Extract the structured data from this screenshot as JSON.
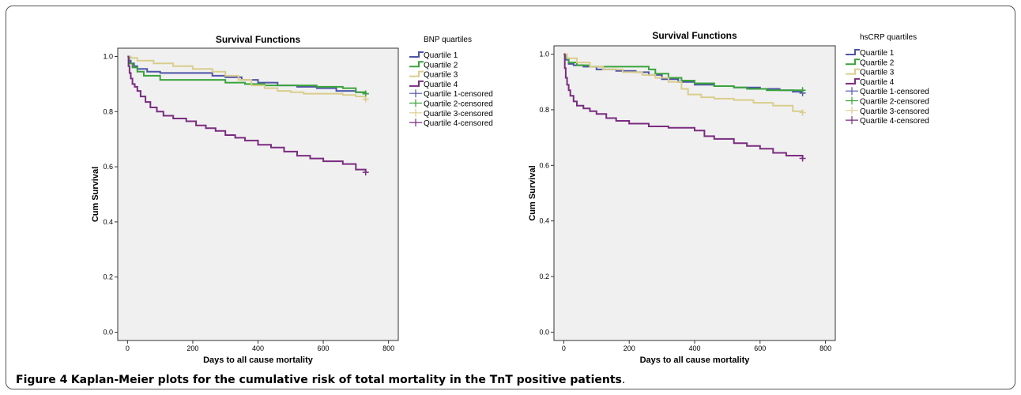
{
  "caption": {
    "label": "Figure 4",
    "text": "Kaplan-Meier plots for the cumulative risk of total mortality in the TnT positive patients",
    "end": "."
  },
  "chart_data": [
    {
      "type": "line",
      "title": "Survival Functions",
      "xlabel": "Days to all cause mortality",
      "ylabel": "Cum Survival",
      "xlim": [
        -30,
        830
      ],
      "ylim": [
        -0.03,
        1.03
      ],
      "xticks": [
        0,
        200,
        400,
        600,
        800
      ],
      "yticks": [
        0.0,
        0.2,
        0.4,
        0.6,
        0.8,
        1.0
      ],
      "xtick_labels": [
        "0",
        "200",
        "400",
        "600",
        "800"
      ],
      "ytick_labels": [
        "0.0",
        "0.2",
        "0.4",
        "0.6",
        "0.8",
        "1.0"
      ],
      "grid": false,
      "legend_title": "BNP quartiles",
      "legend_position": "right",
      "legend_entries": [
        "Quartile 1",
        "Quartile 2",
        "Quartile 3",
        "Quartile 4",
        "Quartile 1-censored",
        "Quartile 2-censored",
        "Quartile 3-censored",
        "Quartile 4-censored"
      ],
      "series": [
        {
          "name": "Quartile 1",
          "color": "#4e55a6",
          "censor_x": 730,
          "x": [
            0,
            4,
            10,
            20,
            30,
            60,
            100,
            160,
            260,
            300,
            350,
            400,
            460,
            520,
            580,
            640,
            700,
            730
          ],
          "y": [
            1.0,
            0.985,
            0.975,
            0.965,
            0.955,
            0.945,
            0.94,
            0.94,
            0.93,
            0.925,
            0.915,
            0.905,
            0.895,
            0.89,
            0.885,
            0.875,
            0.87,
            0.865
          ]
        },
        {
          "name": "Quartile 2",
          "color": "#3aa43a",
          "censor_x": 730,
          "x": [
            0,
            5,
            15,
            30,
            50,
            100,
            150,
            240,
            300,
            360,
            420,
            500,
            580,
            660,
            700,
            730
          ],
          "y": [
            1.0,
            0.975,
            0.96,
            0.945,
            0.93,
            0.915,
            0.915,
            0.915,
            0.905,
            0.9,
            0.895,
            0.895,
            0.89,
            0.885,
            0.87,
            0.865
          ]
        },
        {
          "name": "Quartile 3",
          "color": "#d9cd8c",
          "censor_x": 730,
          "x": [
            0,
            10,
            30,
            80,
            140,
            200,
            260,
            300,
            340,
            380,
            420,
            460,
            500,
            540,
            600,
            660,
            700,
            730
          ],
          "y": [
            1.0,
            0.995,
            0.985,
            0.975,
            0.965,
            0.955,
            0.945,
            0.93,
            0.915,
            0.895,
            0.885,
            0.875,
            0.87,
            0.865,
            0.865,
            0.86,
            0.855,
            0.845
          ]
        },
        {
          "name": "Quartile 4",
          "color": "#7a2c80",
          "censor_x": 730,
          "x": [
            0,
            3,
            6,
            10,
            15,
            22,
            30,
            40,
            55,
            70,
            90,
            110,
            140,
            180,
            210,
            240,
            270,
            300,
            330,
            360,
            400,
            440,
            480,
            520,
            560,
            600,
            660,
            700,
            730
          ],
          "y": [
            1.0,
            0.965,
            0.94,
            0.92,
            0.9,
            0.89,
            0.875,
            0.855,
            0.835,
            0.815,
            0.8,
            0.785,
            0.775,
            0.765,
            0.75,
            0.74,
            0.73,
            0.715,
            0.705,
            0.695,
            0.68,
            0.67,
            0.655,
            0.64,
            0.63,
            0.62,
            0.61,
            0.59,
            0.58
          ]
        }
      ]
    },
    {
      "type": "line",
      "title": "Survival Functions",
      "xlabel": "Days to all cause mortality",
      "ylabel": "Cum Survival",
      "xlim": [
        -30,
        830
      ],
      "ylim": [
        -0.03,
        1.03
      ],
      "xticks": [
        0,
        200,
        400,
        600,
        800
      ],
      "yticks": [
        0.0,
        0.2,
        0.4,
        0.6,
        0.8,
        1.0
      ],
      "xtick_labels": [
        "0",
        "200",
        "400",
        "600",
        "800"
      ],
      "ytick_labels": [
        "0.0",
        "0.2",
        "0.4",
        "0.6",
        "0.8",
        "1.0"
      ],
      "grid": false,
      "legend_title": "hsCRP quartiles",
      "legend_position": "right",
      "legend_entries": [
        "Quartile 1",
        "Quartile 2",
        "Quartile 3",
        "Quartile 4",
        "Quartile 1-censored",
        "Quartile 2-censored",
        "Quartile 3-censored",
        "Quartile 4-censored"
      ],
      "series": [
        {
          "name": "Quartile 1",
          "color": "#4e55a6",
          "censor_x": 730,
          "x": [
            0,
            5,
            15,
            30,
            60,
            100,
            160,
            220,
            260,
            300,
            350,
            400,
            460,
            520,
            600,
            660,
            700,
            730
          ],
          "y": [
            1.0,
            0.98,
            0.965,
            0.96,
            0.955,
            0.945,
            0.94,
            0.935,
            0.925,
            0.91,
            0.9,
            0.89,
            0.885,
            0.88,
            0.875,
            0.87,
            0.865,
            0.86
          ]
        },
        {
          "name": "Quartile 2",
          "color": "#3aa43a",
          "censor_x": 730,
          "x": [
            0,
            5,
            15,
            40,
            80,
            150,
            220,
            260,
            280,
            320,
            360,
            400,
            460,
            520,
            560,
            620,
            680,
            730
          ],
          "y": [
            1.0,
            0.985,
            0.97,
            0.96,
            0.955,
            0.955,
            0.955,
            0.945,
            0.93,
            0.915,
            0.905,
            0.895,
            0.885,
            0.88,
            0.875,
            0.87,
            0.87,
            0.87
          ]
        },
        {
          "name": "Quartile 3",
          "color": "#d9cd8c",
          "censor_x": 730,
          "x": [
            0,
            10,
            40,
            80,
            120,
            180,
            240,
            280,
            320,
            360,
            380,
            420,
            460,
            520,
            580,
            640,
            700,
            730
          ],
          "y": [
            1.0,
            0.985,
            0.97,
            0.955,
            0.945,
            0.935,
            0.925,
            0.915,
            0.9,
            0.875,
            0.855,
            0.845,
            0.84,
            0.835,
            0.825,
            0.815,
            0.795,
            0.79
          ]
        },
        {
          "name": "Quartile 4",
          "color": "#7a2c80",
          "censor_x": 730,
          "x": [
            0,
            3,
            6,
            10,
            15,
            20,
            30,
            40,
            60,
            80,
            100,
            130,
            160,
            200,
            260,
            320,
            380,
            400,
            430,
            460,
            520,
            560,
            600,
            640,
            680,
            730
          ],
          "y": [
            1.0,
            0.95,
            0.915,
            0.89,
            0.87,
            0.85,
            0.83,
            0.815,
            0.805,
            0.795,
            0.785,
            0.77,
            0.76,
            0.75,
            0.74,
            0.735,
            0.735,
            0.725,
            0.705,
            0.695,
            0.68,
            0.67,
            0.66,
            0.645,
            0.635,
            0.625
          ]
        }
      ]
    }
  ]
}
